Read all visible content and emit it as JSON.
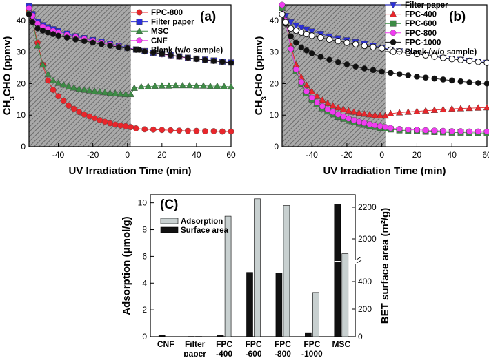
{
  "colors": {
    "red": "#e8262b",
    "blue": "#2b2fd9",
    "green": "#3d8c45",
    "magenta": "#f03cf0",
    "black": "#111111",
    "gray": "#c8d0d0",
    "hatch": "#8a8a8a"
  },
  "chart_data": [
    {
      "id": "a",
      "type": "line",
      "panel_label": "(a)",
      "xlabel": "UV Irradiation Time (min)",
      "ylabel": "CH3CHO (ppmv)",
      "xlim": [
        -57,
        60
      ],
      "ylim": [
        0,
        45
      ],
      "x_ticks": [
        -40,
        -20,
        0,
        20,
        40,
        60
      ],
      "y_ticks": [
        0,
        10,
        20,
        30,
        40
      ],
      "dark_region": [
        -57,
        2
      ],
      "legend_position": "top-right",
      "series": [
        {
          "name": "FPC-800",
          "color": "red",
          "marker": "circle",
          "x": [
            -57,
            -55,
            -52,
            -49,
            -46,
            -43,
            -40,
            -37,
            -34,
            -31,
            -28,
            -25,
            -22,
            -19,
            -16,
            -13,
            -10,
            -7,
            -4,
            -1,
            2,
            5,
            10,
            15,
            20,
            25,
            30,
            35,
            40,
            45,
            50,
            55,
            60
          ],
          "y": [
            43,
            40,
            33,
            26,
            21,
            18,
            16,
            14.5,
            13,
            12,
            11,
            10.2,
            9.6,
            9,
            8.4,
            7.9,
            7.4,
            7,
            6.7,
            6.5,
            6.2,
            5.8,
            5.5,
            5.4,
            5.3,
            5.2,
            5.1,
            5.0,
            5.0,
            4.9,
            4.9,
            4.8,
            4.8
          ]
        },
        {
          "name": "Filter paper",
          "color": "blue",
          "marker": "square",
          "x": [
            -57,
            -55,
            -52,
            -49,
            -46,
            -43,
            -40,
            -35,
            -30,
            -25,
            -20,
            -15,
            -10,
            -5,
            0,
            5,
            10,
            15,
            20,
            25,
            30,
            35,
            40,
            45,
            50,
            55,
            60
          ],
          "y": [
            44.5,
            42,
            39.5,
            38.5,
            37.8,
            37.2,
            36.6,
            35.8,
            35,
            34.4,
            33.8,
            33.2,
            32.6,
            32,
            31.4,
            30.8,
            30.3,
            29.8,
            29.4,
            29,
            28.6,
            28.2,
            27.9,
            27.6,
            27.3,
            27.0,
            26.7
          ]
        },
        {
          "name": "MSC",
          "color": "green",
          "marker": "triangle",
          "x": [
            -57,
            -55,
            -52,
            -49,
            -46,
            -43,
            -40,
            -37,
            -34,
            -31,
            -28,
            -25,
            -22,
            -19,
            -16,
            -13,
            -10,
            -7,
            -4,
            -1,
            2,
            4,
            8,
            12,
            16,
            20,
            24,
            28,
            32,
            36,
            40,
            44,
            48,
            52,
            56,
            60
          ],
          "y": [
            43,
            40,
            32,
            26,
            23,
            21,
            20.2,
            19.6,
            19.1,
            18.7,
            18.3,
            18,
            17.8,
            17.6,
            17.4,
            17.2,
            17.0,
            16.9,
            16.7,
            16.6,
            16.6,
            18.6,
            19,
            19.1,
            19.2,
            19.3,
            19.3,
            19.4,
            19.4,
            19.4,
            19.3,
            19.3,
            19.2,
            19.2,
            19.1,
            19.0
          ]
        },
        {
          "name": "CNF",
          "color": "magenta",
          "marker": "circle",
          "x": [
            -57,
            -55,
            -52,
            -49,
            -46,
            -43,
            -40,
            -35,
            -30,
            -25,
            -20,
            -15,
            -10,
            -5,
            0,
            5,
            10,
            15,
            20,
            25,
            30,
            35,
            40,
            45,
            50,
            55,
            60
          ],
          "y": [
            44,
            41.5,
            39,
            38,
            37.3,
            36.7,
            36.2,
            35.5,
            34.8,
            34.2,
            33.6,
            33,
            32.4,
            31.8,
            31.3,
            30.8,
            30.3,
            29.8,
            29.3,
            28.9,
            28.5,
            28.1,
            27.8,
            27.5,
            27.2,
            26.9,
            26.6
          ]
        },
        {
          "name": "Blank (w/o sample)",
          "color": "black",
          "marker": "circle",
          "x": [
            -57,
            -55,
            -52,
            -49,
            -46,
            -43,
            -40,
            -35,
            -30,
            -25,
            -20,
            -15,
            -10,
            -5,
            0,
            5,
            10,
            15,
            20,
            25,
            30,
            35,
            40,
            45,
            50,
            55,
            60
          ],
          "y": [
            42,
            39.5,
            37.5,
            36.8,
            36.2,
            35.7,
            35.2,
            34.6,
            34,
            33.5,
            33,
            32.5,
            32,
            31.6,
            31.2,
            30.7,
            30.2,
            29.8,
            29.4,
            29,
            28.6,
            28.2,
            27.8,
            27.5,
            27.2,
            26.9,
            26.6
          ]
        }
      ]
    },
    {
      "id": "b",
      "type": "line",
      "panel_label": "(b)",
      "xlabel": "UV Irradiation Time (min)",
      "ylabel": "CH3CHO (ppmv)",
      "xlim": [
        -57,
        60
      ],
      "ylim": [
        0,
        45
      ],
      "x_ticks": [
        -40,
        -20,
        0,
        20,
        40,
        60
      ],
      "y_ticks": [
        0,
        10,
        20,
        30,
        40
      ],
      "dark_region": [
        -57,
        2
      ],
      "legend_position": "top-right",
      "series": [
        {
          "name": "Filter paper",
          "color": "blue",
          "marker": "triangle-down",
          "x": [
            -57,
            -55,
            -52,
            -49,
            -46,
            -43,
            -40,
            -35,
            -30,
            -25,
            -20,
            -15,
            -10,
            -5,
            0,
            5,
            10,
            15,
            20,
            25,
            30,
            35,
            40,
            45,
            50,
            55,
            60
          ],
          "y": [
            44,
            41.5,
            39.5,
            38.5,
            37.8,
            37.2,
            36.6,
            35.8,
            35,
            34.4,
            33.8,
            33.2,
            32.6,
            32,
            31.4,
            30.8,
            30.3,
            29.8,
            29.4,
            29,
            28.6,
            28.2,
            27.9,
            27.6,
            27.3,
            27.0,
            26.7
          ]
        },
        {
          "name": "FPC-400",
          "color": "red",
          "marker": "triangle",
          "x": [
            -57,
            -55,
            -52,
            -49,
            -46,
            -43,
            -40,
            -37,
            -34,
            -31,
            -28,
            -25,
            -22,
            -19,
            -16,
            -13,
            -10,
            -7,
            -4,
            -1,
            2,
            5,
            10,
            15,
            20,
            25,
            30,
            35,
            40,
            45,
            50,
            55,
            60
          ],
          "y": [
            44,
            40,
            32,
            26,
            22,
            19.5,
            17.5,
            16,
            14.8,
            13.8,
            13,
            12.4,
            11.9,
            11.4,
            11,
            10.7,
            10.4,
            10.2,
            10,
            9.9,
            9.8,
            10.5,
            10.8,
            11,
            11.2,
            11.4,
            11.6,
            11.8,
            12,
            12.1,
            12.2,
            12.3,
            12.4
          ]
        },
        {
          "name": "FPC-600",
          "color": "green",
          "marker": "square",
          "x": [
            -57,
            -55,
            -52,
            -49,
            -46,
            -43,
            -40,
            -37,
            -34,
            -31,
            -28,
            -25,
            -22,
            -19,
            -16,
            -13,
            -10,
            -7,
            -4,
            -1,
            2,
            5,
            10,
            15,
            20,
            25,
            30,
            35,
            40,
            45,
            50,
            55,
            60
          ],
          "y": [
            44,
            40,
            31,
            24,
            20,
            17,
            15,
            13.5,
            12.2,
            11.2,
            10.3,
            9.5,
            8.9,
            8.3,
            7.8,
            7.4,
            7,
            6.6,
            6.3,
            6.0,
            5.8,
            5.5,
            5.2,
            5.0,
            4.9,
            4.8,
            4.7,
            4.6,
            4.5,
            4.5,
            4.4,
            4.4,
            4.3
          ]
        },
        {
          "name": "FPC-800",
          "color": "magenta",
          "marker": "circle",
          "x": [
            -57,
            -55,
            -52,
            -49,
            -46,
            -43,
            -40,
            -37,
            -34,
            -31,
            -28,
            -25,
            -22,
            -19,
            -16,
            -13,
            -10,
            -7,
            -4,
            -1,
            2,
            5,
            10,
            15,
            20,
            25,
            30,
            35,
            40,
            45,
            50,
            55,
            60
          ],
          "y": [
            45,
            40,
            31,
            24.5,
            20.5,
            17.5,
            15.5,
            14,
            12.8,
            11.8,
            11,
            10.2,
            9.5,
            8.9,
            8.4,
            7.9,
            7.5,
            7.1,
            6.8,
            6.5,
            6.2,
            5.9,
            5.6,
            5.4,
            5.3,
            5.2,
            5.1,
            5.0,
            4.9,
            4.9,
            4.8,
            4.8,
            4.8
          ]
        },
        {
          "name": "FPC-1000",
          "color": "black",
          "marker": "circle",
          "x": [
            -57,
            -55,
            -52,
            -49,
            -46,
            -43,
            -40,
            -35,
            -30,
            -25,
            -20,
            -15,
            -10,
            -5,
            0,
            5,
            10,
            15,
            20,
            25,
            30,
            35,
            40,
            45,
            50,
            55,
            60
          ],
          "y": [
            42,
            39,
            35,
            33,
            31.5,
            30.5,
            29.6,
            28.5,
            27.6,
            26.8,
            26.1,
            25.4,
            24.8,
            24.3,
            23.8,
            23.4,
            23,
            22.6,
            22.2,
            21.9,
            21.6,
            21.3,
            21,
            20.7,
            20.4,
            20.2,
            20.0
          ]
        },
        {
          "name": "Blank (w/o sample)",
          "color": "black",
          "marker": "open-circle",
          "x": [
            -57,
            -55,
            -52,
            -49,
            -46,
            -43,
            -40,
            -35,
            -30,
            -25,
            -20,
            -15,
            -10,
            -5,
            0,
            5,
            10,
            15,
            20,
            25,
            30,
            35,
            40,
            45,
            50,
            55,
            60
          ],
          "y": [
            42,
            39.5,
            37.5,
            36.8,
            36.2,
            35.7,
            35.2,
            34.6,
            34,
            33.5,
            33,
            32.5,
            32,
            31.6,
            31.2,
            30.7,
            30.2,
            29.8,
            29.4,
            29,
            28.6,
            28.2,
            27.8,
            27.5,
            27.2,
            26.9,
            26.6
          ]
        }
      ]
    },
    {
      "id": "c",
      "type": "bar",
      "panel_label": "(C)",
      "ylabel_left": "Adsorption (μmol/g)",
      "ylabel_right": "BET surface area (m²/g)",
      "categories": [
        [
          "CNF"
        ],
        [
          "Filter",
          "paper"
        ],
        [
          "FPC",
          "-400"
        ],
        [
          "FPC",
          "-600"
        ],
        [
          "FPC",
          "-800"
        ],
        [
          "FPC",
          "-1000"
        ],
        [
          "MSC"
        ]
      ],
      "left_ylim": [
        0,
        10.6
      ],
      "left_ticks": [
        0,
        2,
        4,
        6,
        8,
        10
      ],
      "right_ticks_lower": [
        "0",
        "200",
        "400"
      ],
      "right_ticks_upper": [
        "2000",
        "2200"
      ],
      "right_axis_note": "broken axis: lower segment 0–500 m²/g, upper segment 1850–2250 m²/g",
      "series": [
        {
          "name": "Adsorption",
          "color": "gray",
          "axis": "left",
          "values": [
            0,
            0.02,
            9.0,
            10.3,
            9.8,
            3.3,
            6.2
          ]
        },
        {
          "name": "Surface area",
          "color": "black",
          "axis": "left_scaled",
          "values_display_on_left_scale": [
            0.12,
            0.02,
            0.12,
            4.8,
            4.75,
            0.25,
            9.9
          ]
        }
      ],
      "legend_position": "top-left"
    }
  ]
}
